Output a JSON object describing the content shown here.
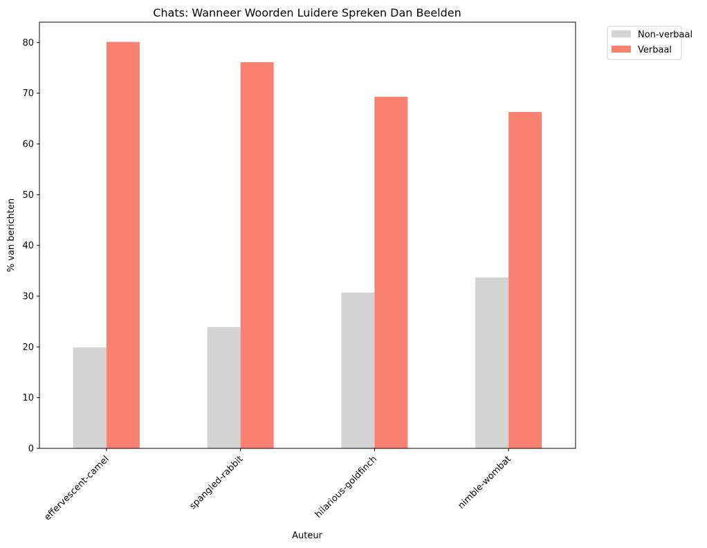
{
  "chart_data": {
    "type": "bar",
    "title": "Chats: Wanneer Woorden Luidere Spreken Dan Beelden",
    "xlabel": "Auteur",
    "ylabel": "% van berichten",
    "categories": [
      "effervescent-camel",
      "spangled-rabbit",
      "hilarious-goldfinch",
      "nimble-wombat"
    ],
    "series": [
      {
        "name": "Non-verbaal",
        "color": "#d3d3d3",
        "values": [
          19.9,
          23.9,
          30.7,
          33.7
        ]
      },
      {
        "name": "Verbaal",
        "color": "#fa8072",
        "values": [
          80.1,
          76.1,
          69.3,
          66.3
        ]
      }
    ],
    "ylim": [
      0,
      84
    ],
    "yticks": [
      0,
      10,
      20,
      30,
      40,
      50,
      60,
      70,
      80
    ],
    "grid": false,
    "legend_position": "outside-top-right"
  }
}
